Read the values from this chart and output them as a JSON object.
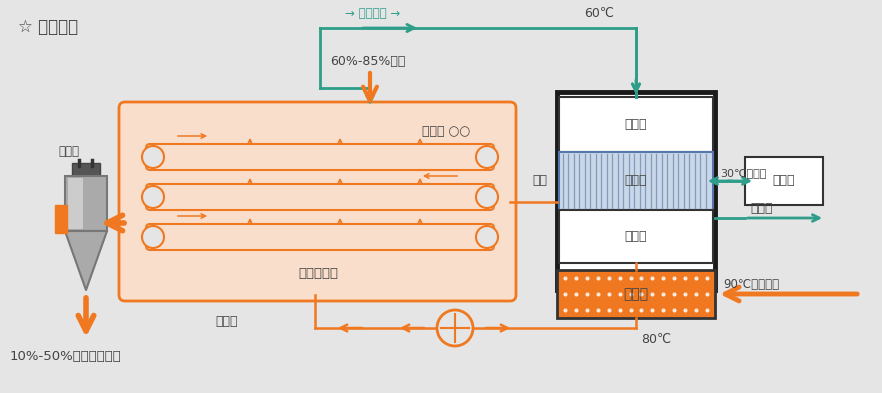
{
  "bg_color": "#e5e5e5",
  "orange": "#F07820",
  "orange_fill": "#FADECC",
  "teal": "#2E9E8A",
  "dark_gray": "#444444",
  "white": "#ffffff",
  "title": "☆ 工作原理",
  "label_wet_sludge": "60%-85%湿泥",
  "label_dry_sludge": "10%-50%干泥（可调）",
  "label_dryer_box": "带式干燥器",
  "label_former": "成型机 ○○",
  "label_dry_bin": "干料仓",
  "label_hot_air": "热空气",
  "label_heat_exchange": "换热",
  "label_reheater1": "回热器",
  "label_cooler": "冷却器",
  "label_reheater2": "回热器",
  "label_heater": "加热器",
  "label_cooling_tower": "冷却塔",
  "label_condensate": "冷凝水",
  "label_air_circ": "→ 空气循环 →",
  "label_60c": "60℃",
  "label_30c": "30℃冷却水",
  "label_90c": "90℃余热热水",
  "label_80c": "80℃"
}
